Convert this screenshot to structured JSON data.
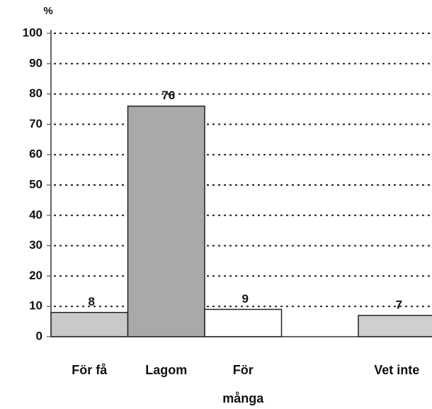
{
  "chart_data": {
    "type": "bar",
    "y_axis_label": "%",
    "categories": [
      "För få",
      "Lagom",
      "För\nmånga",
      null,
      "Vet inte"
    ],
    "values": [
      8,
      76,
      9,
      null,
      7
    ],
    "colors": [
      "#c9c9c9",
      "#a9a9a9",
      "#ffffff",
      null,
      "#cfcfcf"
    ],
    "ylim": [
      0,
      100
    ],
    "yticks": [
      0,
      10,
      20,
      30,
      40,
      50,
      60,
      70,
      80,
      90,
      100
    ],
    "grid": true
  }
}
